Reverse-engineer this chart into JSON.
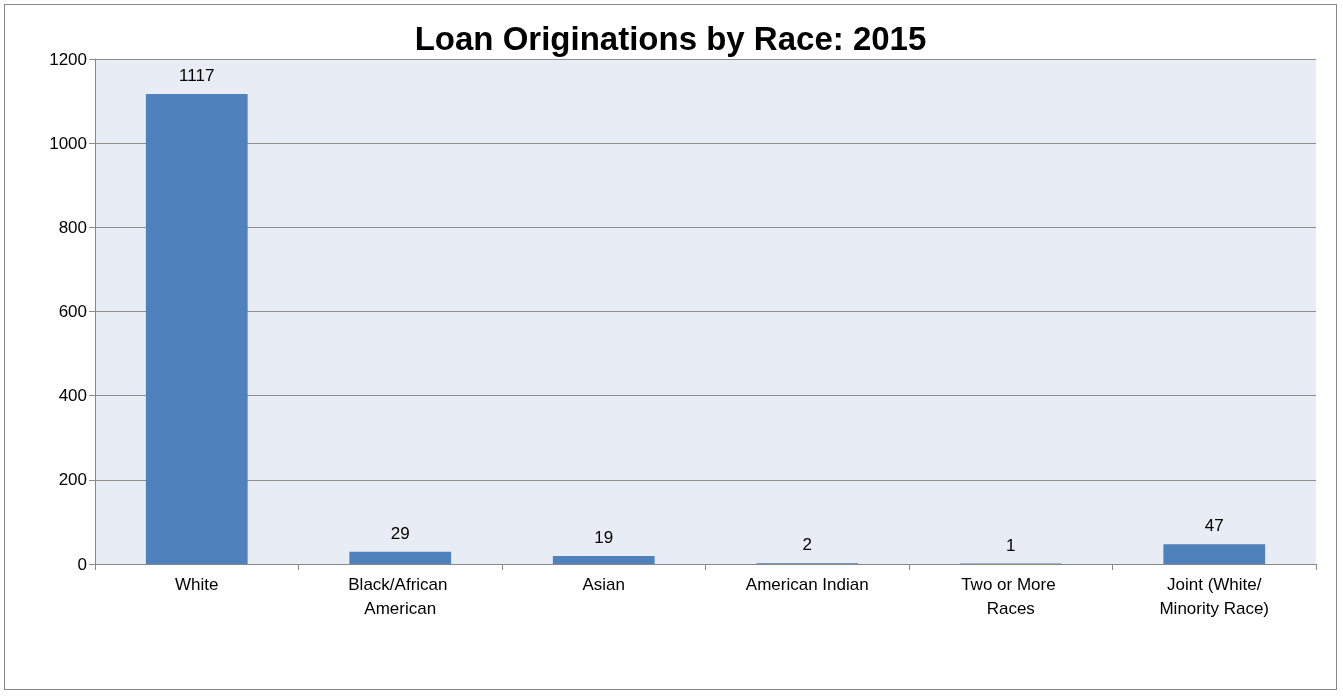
{
  "chart_data": {
    "type": "bar",
    "title": "Loan Originations by Race: 2015",
    "categories": [
      "White",
      "Black/African American",
      "Asian",
      "American Indian",
      "Two or More Races",
      "Joint (White/Minority Race)"
    ],
    "values": [
      1117,
      29,
      19,
      2,
      1,
      47
    ],
    "color": "#4f81bd",
    "ylim": [
      0,
      1200
    ],
    "yticks": [
      0,
      200,
      400,
      600,
      800,
      1000,
      1200
    ],
    "grid": "y",
    "data_labels": true
  }
}
